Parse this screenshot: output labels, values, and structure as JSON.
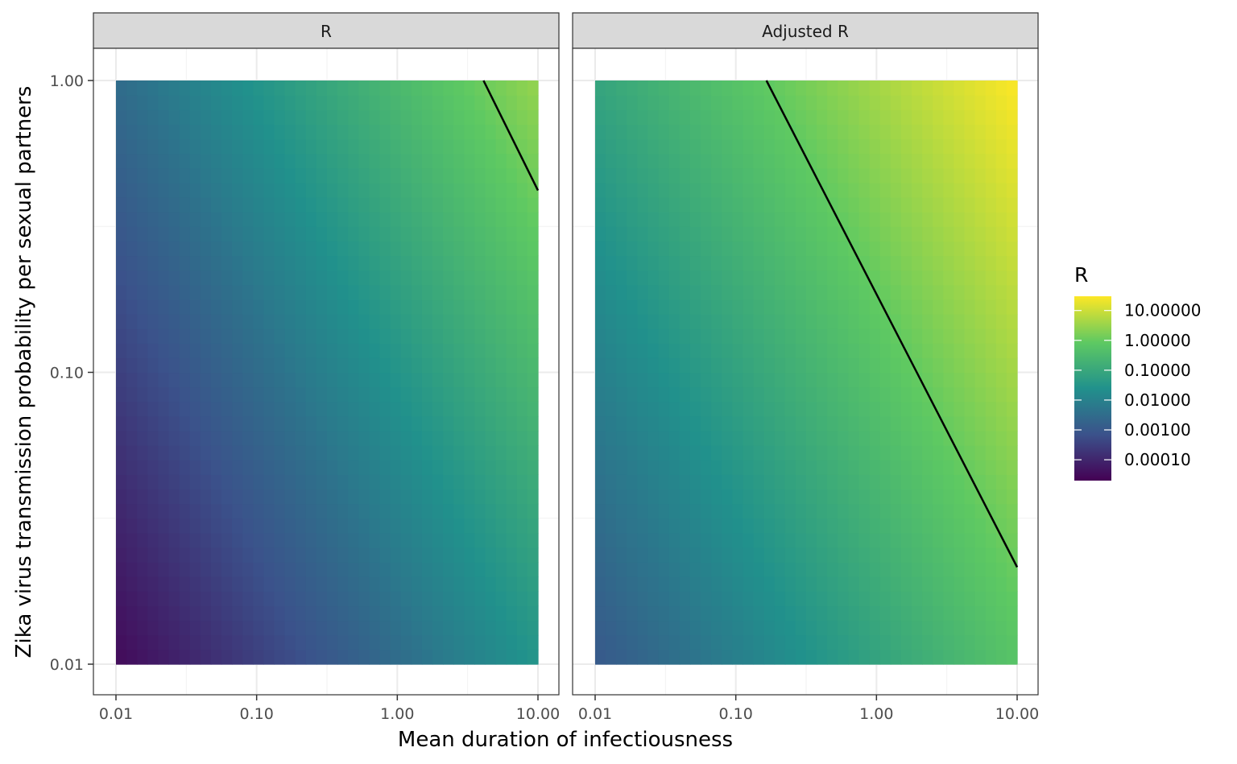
{
  "chart_data": {
    "type": "heatmap",
    "xlabel": "Mean duration of infectiousness",
    "ylabel": "Zika virus transmission probability per sexual partners",
    "x_scale": "log10",
    "y_scale": "log10",
    "xlim": [
      0.01,
      10
    ],
    "ylim": [
      0.01,
      1
    ],
    "x_ticks": [
      0.01,
      0.1,
      1,
      10
    ],
    "x_tick_labels": [
      "0.01",
      "0.10",
      "1.00",
      "10.00"
    ],
    "y_ticks": [
      0.01,
      0.1,
      1
    ],
    "y_tick_labels": [
      "0.01",
      "0.10",
      "1.00"
    ],
    "grid": true,
    "colormap": "viridis",
    "colors": {
      "viridis": [
        "#440154",
        "#3b528b",
        "#21918c",
        "#5ec962",
        "#fde725"
      ]
    },
    "legend": {
      "title": "R",
      "position": "right",
      "range": [
        2e-05,
        30
      ],
      "breaks": [
        0.0001,
        0.001,
        0.01,
        0.1,
        1,
        10
      ],
      "break_labels": [
        "0.00010",
        "0.00100",
        "0.01000",
        "0.10000",
        "1.00000",
        "10.00000"
      ]
    },
    "panels": [
      {
        "strip": "R",
        "r_corners": {
          "x0.01_y0.01": 3e-05,
          "x10_y0.01": 0.03,
          "x0.01_y1": 0.003,
          "x10_y1": 3
        },
        "contour_R1": [
          [
            4.1,
            1.0
          ],
          [
            10.0,
            0.42
          ]
        ]
      },
      {
        "strip": "Adjusted R",
        "r_corners": {
          "x0.01_y0.01": 0.001,
          "x10_y0.01": 0.6,
          "x0.01_y1": 0.08,
          "x10_y1": 30
        },
        "contour_R1": [
          [
            0.165,
            1.0
          ],
          [
            10.0,
            0.0215
          ]
        ]
      }
    ]
  }
}
